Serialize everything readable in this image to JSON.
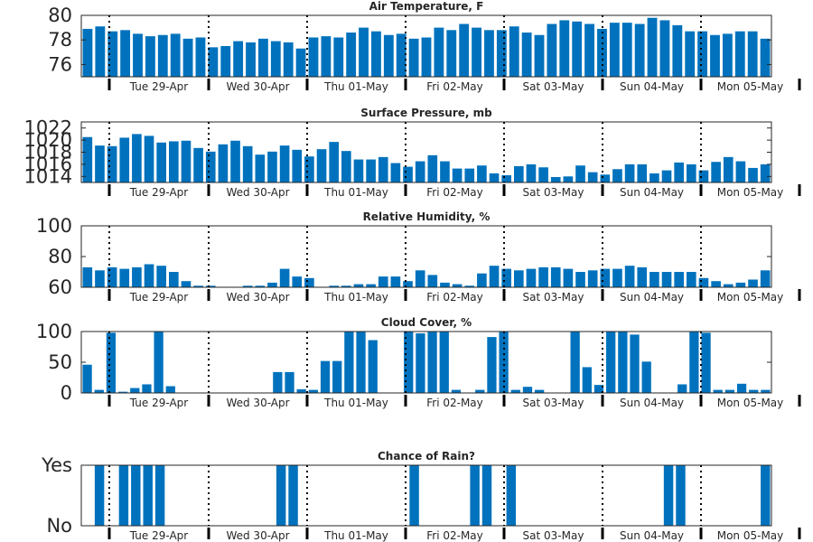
{
  "chart_data": {
    "x_labels": [
      "Tue 29-Apr",
      "Wed 30-Apr",
      "Thu 01-May",
      "Fri 02-May",
      "Sat 03-May",
      "Sun 04-May",
      "Mon 05-May"
    ],
    "bar_color": "#0072bd",
    "panels": [
      {
        "type": "bar",
        "title": "Air Temperature, F",
        "ylim": [
          75,
          80
        ],
        "yticks": [
          "80",
          "78",
          "76"
        ],
        "yticks_values": [
          80,
          78,
          76
        ],
        "values": [
          78.9,
          79.1,
          78.7,
          78.8,
          78.5,
          78.3,
          78.4,
          78.5,
          78.1,
          78.2,
          77.4,
          77.5,
          77.9,
          77.8,
          78.1,
          77.9,
          77.8,
          77.3,
          78.2,
          78.3,
          78.2,
          78.6,
          79.0,
          78.7,
          78.4,
          78.5,
          78.1,
          78.2,
          79.0,
          78.8,
          79.3,
          79.0,
          78.8,
          78.8,
          79.1,
          78.6,
          78.4,
          79.3,
          79.6,
          79.5,
          79.3,
          78.9,
          79.4,
          79.4,
          79.3,
          79.8,
          79.6,
          79.2,
          78.7,
          78.7,
          78.4,
          78.5,
          78.7,
          78.7,
          78.1
        ]
      },
      {
        "type": "bar",
        "title": "Surface Pressure, mb",
        "ylim": [
          1013,
          1023
        ],
        "yticks": [
          "1022",
          "1020",
          "1018",
          "1016",
          "1014"
        ],
        "yticks_values": [
          1022,
          1020,
          1018,
          1016,
          1014
        ],
        "values": [
          1020.5,
          1019.1,
          1019.0,
          1020.4,
          1021.0,
          1020.7,
          1019.6,
          1019.8,
          1019.9,
          1018.7,
          1018.1,
          1019.3,
          1019.9,
          1019.0,
          1017.6,
          1018.1,
          1019.1,
          1018.4,
          1017.3,
          1018.5,
          1019.7,
          1018.2,
          1016.8,
          1016.8,
          1017.2,
          1016.2,
          1015.6,
          1016.5,
          1017.5,
          1016.5,
          1015.3,
          1015.3,
          1015.8,
          1014.5,
          1014.2,
          1015.7,
          1016.0,
          1015.5,
          1013.9,
          1014.0,
          1015.8,
          1014.7,
          1014.3,
          1015.2,
          1016.0,
          1016.0,
          1014.5,
          1015.0,
          1016.3,
          1016.0,
          1015.0,
          1016.4,
          1017.2,
          1016.5,
          1015.4,
          1016.0
        ]
      },
      {
        "type": "bar",
        "title": "Relative Humidity, %",
        "ylim": [
          60,
          100
        ],
        "yticks": [
          "100",
          "80",
          "60"
        ],
        "yticks_values": [
          100,
          80,
          60
        ],
        "values": [
          73,
          71,
          73,
          72,
          73,
          75,
          74,
          70,
          64,
          61,
          61,
          60,
          60,
          61,
          61,
          63,
          72,
          67,
          66,
          60,
          61,
          61,
          62,
          62,
          67,
          67,
          64,
          71,
          68,
          63,
          62,
          61,
          69,
          74,
          72,
          71,
          72,
          73,
          73,
          72,
          70,
          71,
          72,
          72,
          74,
          73,
          70,
          70,
          70,
          70,
          66,
          64,
          62,
          63,
          65,
          71
        ]
      },
      {
        "type": "bar",
        "title": "Cloud Cover, %",
        "ylim": [
          0,
          100
        ],
        "yticks": [
          "100",
          "50",
          "0"
        ],
        "yticks_values": [
          100,
          50,
          0
        ],
        "values": [
          46,
          5,
          98,
          2,
          8,
          14,
          100,
          11,
          0,
          0,
          0,
          0,
          0,
          0,
          0,
          0,
          34,
          34,
          6,
          5,
          52,
          52,
          100,
          100,
          86,
          0,
          0,
          100,
          97,
          100,
          100,
          5,
          0,
          5,
          91,
          100,
          5,
          10,
          5,
          0,
          0,
          100,
          42,
          13,
          100,
          100,
          95,
          51,
          0,
          0,
          14,
          100,
          98,
          5,
          5,
          15,
          5,
          5
        ]
      },
      {
        "type": "bar",
        "title": "Chance of Rain?",
        "ylim": [
          0,
          1
        ],
        "yticks": [
          "Yes",
          "No"
        ],
        "yticks_values": [
          1,
          0
        ],
        "values": [
          0,
          1,
          0,
          1,
          1,
          1,
          1,
          0,
          0,
          0,
          0,
          0,
          0,
          0,
          0,
          0,
          1,
          1,
          0,
          0,
          0,
          0,
          0,
          0,
          0,
          0,
          0,
          1,
          0,
          0,
          0,
          0,
          1,
          1,
          0,
          1,
          0,
          0,
          0,
          0,
          0,
          0,
          0,
          0,
          0,
          0,
          0,
          0,
          1,
          1,
          0,
          0,
          0,
          0,
          0,
          0,
          1
        ]
      }
    ]
  }
}
